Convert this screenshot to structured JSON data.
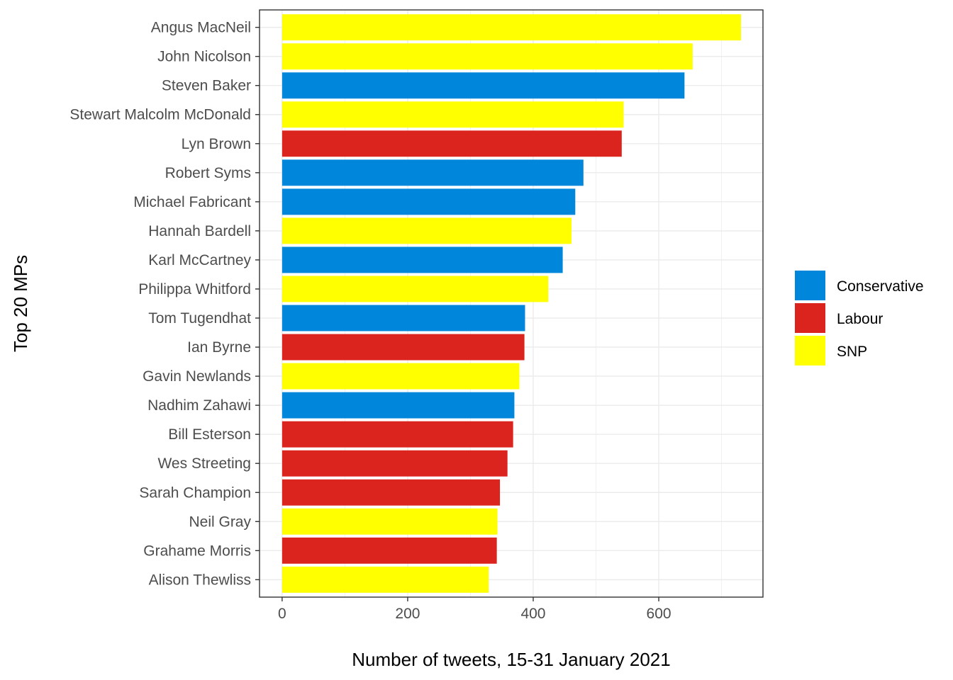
{
  "chart_data": {
    "type": "bar",
    "orientation": "horizontal",
    "xlabel": "Number of tweets, 15-31 January 2021",
    "ylabel": "Top 20 MPs",
    "xlim": [
      -36,
      766
    ],
    "xticks": [
      0,
      200,
      400,
      600
    ],
    "grid": true,
    "legend_position": "right",
    "party_colors": {
      "Conservative": "#0087dc",
      "Labour": "#dc241f",
      "SNP": "#ffff00"
    },
    "legend": [
      "Conservative",
      "Labour",
      "SNP"
    ],
    "bars": [
      {
        "name": "Angus MacNeil",
        "value": 731,
        "party": "SNP"
      },
      {
        "name": "John Nicolson",
        "value": 654,
        "party": "SNP"
      },
      {
        "name": "Steven Baker",
        "value": 641,
        "party": "Conservative"
      },
      {
        "name": "Stewart Malcolm McDonald",
        "value": 544,
        "party": "SNP"
      },
      {
        "name": "Lyn Brown",
        "value": 541,
        "party": "Labour"
      },
      {
        "name": "Robert Syms",
        "value": 480,
        "party": "Conservative"
      },
      {
        "name": "Michael Fabricant",
        "value": 467,
        "party": "Conservative"
      },
      {
        "name": "Hannah Bardell",
        "value": 461,
        "party": "SNP"
      },
      {
        "name": "Karl McCartney",
        "value": 447,
        "party": "Conservative"
      },
      {
        "name": "Philippa Whitford",
        "value": 424,
        "party": "SNP"
      },
      {
        "name": "Tom Tugendhat",
        "value": 387,
        "party": "Conservative"
      },
      {
        "name": "Ian Byrne",
        "value": 386,
        "party": "Labour"
      },
      {
        "name": "Gavin Newlands",
        "value": 378,
        "party": "SNP"
      },
      {
        "name": "Nadhim Zahawi",
        "value": 370,
        "party": "Conservative"
      },
      {
        "name": "Bill Esterson",
        "value": 368,
        "party": "Labour"
      },
      {
        "name": "Wes Streeting",
        "value": 359,
        "party": "Labour"
      },
      {
        "name": "Sarah Champion",
        "value": 347,
        "party": "Labour"
      },
      {
        "name": "Neil Gray",
        "value": 343,
        "party": "SNP"
      },
      {
        "name": "Grahame Morris",
        "value": 342,
        "party": "Labour"
      },
      {
        "name": "Alison Thewliss",
        "value": 329,
        "party": "SNP"
      }
    ]
  }
}
